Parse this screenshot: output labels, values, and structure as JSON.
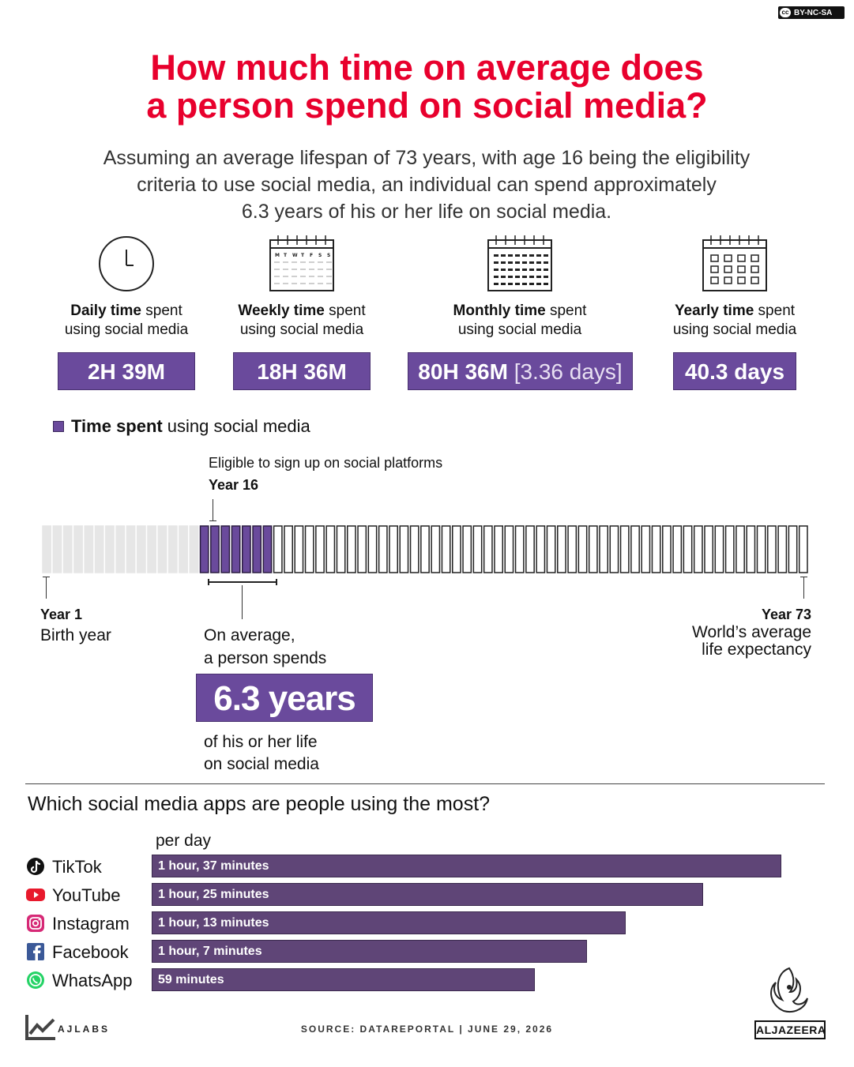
{
  "license": "BY-NC-SA",
  "title_line1": "How much time on average does",
  "title_line2": "a person spend on social media?",
  "subtitle_line1": "Assuming an average lifespan of 73 years, with age 16 being the eligibility",
  "subtitle_line2": "criteria to use social media, an individual can spend approximately",
  "subtitle_line3": "6.3 years of his or her life on social media.",
  "stats": [
    {
      "icon": "clock-icon",
      "bold": "Daily time",
      "rest": " spent",
      "line2": "using social media",
      "value": "2H 39M",
      "extra": ""
    },
    {
      "icon": "weekly-calendar-icon",
      "bold": "Weekly time",
      "rest": " spent",
      "line2": "using social media",
      "value": "18H 36M",
      "extra": ""
    },
    {
      "icon": "monthly-calendar-icon",
      "bold": "Monthly time",
      "rest": " spent",
      "line2": "using social media",
      "value": "80H 36M",
      "extra": "[3.36 days]"
    },
    {
      "icon": "yearly-calendar-icon",
      "bold": "Yearly time",
      "rest": " spent",
      "line2": "using social media",
      "value": "40.3 days",
      "extra": ""
    }
  ],
  "weekday_letters": [
    "M",
    "T",
    "W",
    "T",
    "F",
    "S",
    "S"
  ],
  "legend": {
    "bold": "Time spent",
    "rest": "using social media"
  },
  "timeline": {
    "eligible_label": "Eligible to sign up on social platforms",
    "eligible_year": "Year 16",
    "start_label": "Year 1",
    "start_sub": "Birth year",
    "end_label": "Year 73",
    "end_sub_line1": "World’s average",
    "end_sub_line2": "life expectancy",
    "on_avg_line1": "On average,",
    "on_avg_line2": "a person spends",
    "big_value": "6.3 years",
    "of_life_line1": "of his or her life",
    "of_life_line2": "on social media",
    "total_years": 73,
    "eligible_from": 16,
    "social_years": 6.3,
    "colors": {
      "pre": "#e6e6e6",
      "social": "#6a4a9c",
      "rest": "#ffffff"
    }
  },
  "chart_data": {
    "type": "bar",
    "title": "Which social media apps are people using the most?",
    "unit_label": "per day",
    "categories": [
      "TikTok",
      "YouTube",
      "Instagram",
      "Facebook",
      "WhatsApp"
    ],
    "values": [
      97,
      85,
      73,
      67,
      59
    ],
    "value_unit": "minutes per day",
    "value_labels": [
      "1 hour, 37 minutes",
      "1 hour, 25 minutes",
      "1 hour, 13 minutes",
      "1 hour, 7 minutes",
      "59 minutes"
    ],
    "icons": [
      "tiktok-icon",
      "youtube-icon",
      "instagram-icon",
      "facebook-icon",
      "whatsapp-icon"
    ],
    "bar_color": "#5f4577"
  },
  "footer": {
    "brand": "AJLABS",
    "source": "SOURCE:  DATAREPORTAL   |   JUNE 29, 2026",
    "publisher": "ALJAZEERA"
  }
}
